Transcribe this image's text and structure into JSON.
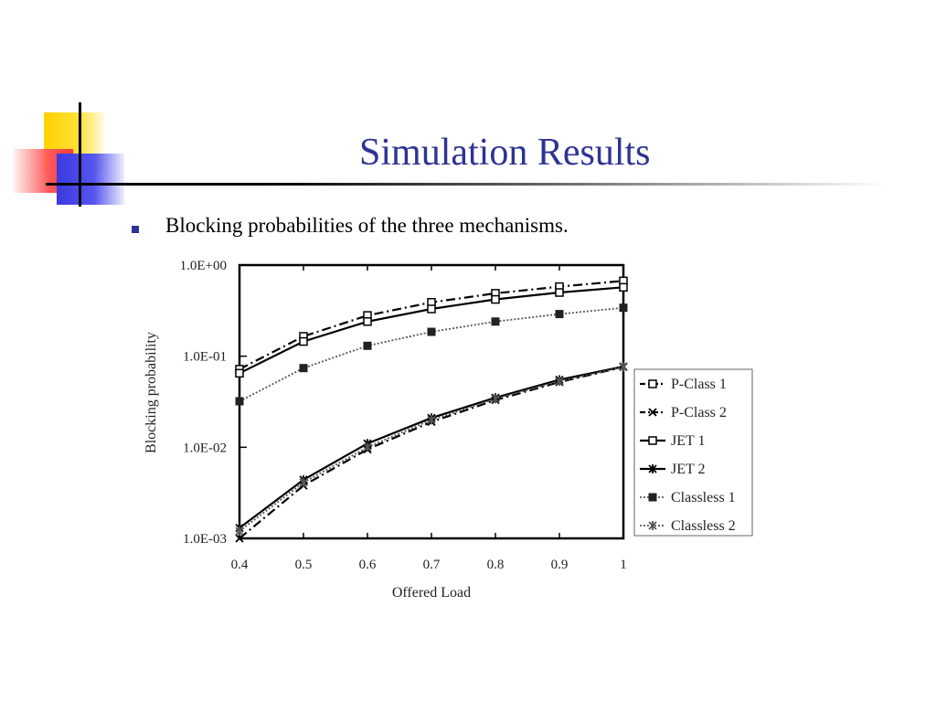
{
  "slide": {
    "title": "Simulation Results",
    "bullet": "Blocking probabilities of the three mechanisms."
  },
  "colors": {
    "title": "#2e3394",
    "bullet": "#2e3394",
    "accent_yellow": "#ffd200",
    "accent_red": "#ff4a4a",
    "accent_blue": "#3a3ae0",
    "series_solid": "#000000",
    "series_dotted": "#555555"
  },
  "chart_data": {
    "type": "line",
    "title": "",
    "xlabel": "Offered Load",
    "ylabel": "Blocking probability",
    "yscale": "log",
    "xlim": [
      0.4,
      1.0
    ],
    "ylim": [
      0.001,
      1.0
    ],
    "xticks": [
      "0.4",
      "0.5",
      "0.6",
      "0.7",
      "0.8",
      "0.9",
      "1"
    ],
    "yticks": [
      "1.0E+00",
      "1.0E-01",
      "1.0E-02",
      "1.0E-03"
    ],
    "grid": false,
    "legend_position": "right",
    "x": [
      0.4,
      0.5,
      0.6,
      0.7,
      0.8,
      0.9,
      1.0
    ],
    "series": [
      {
        "name": "P-Class 1",
        "marker": "square-open",
        "line": "dashdot",
        "values": [
          0.072,
          0.165,
          0.28,
          0.39,
          0.49,
          0.58,
          0.67
        ]
      },
      {
        "name": "P-Class 2",
        "marker": "x",
        "line": "dashdot",
        "values": [
          0.001,
          0.0038,
          0.0095,
          0.019,
          0.033,
          0.052,
          0.076
        ]
      },
      {
        "name": "JET 1",
        "marker": "square-open",
        "line": "solid",
        "values": [
          0.065,
          0.145,
          0.24,
          0.33,
          0.42,
          0.5,
          0.57
        ]
      },
      {
        "name": "JET 2",
        "marker": "star",
        "line": "solid",
        "values": [
          0.0013,
          0.0044,
          0.011,
          0.021,
          0.035,
          0.055,
          0.077
        ]
      },
      {
        "name": "Classless 1",
        "marker": "square-filled",
        "line": "dotted",
        "values": [
          0.032,
          0.074,
          0.13,
          0.185,
          0.24,
          0.29,
          0.34
        ]
      },
      {
        "name": "Classless 2",
        "marker": "star",
        "line": "dotted",
        "values": [
          0.0012,
          0.0041,
          0.01,
          0.02,
          0.034,
          0.053,
          0.076
        ]
      }
    ]
  }
}
